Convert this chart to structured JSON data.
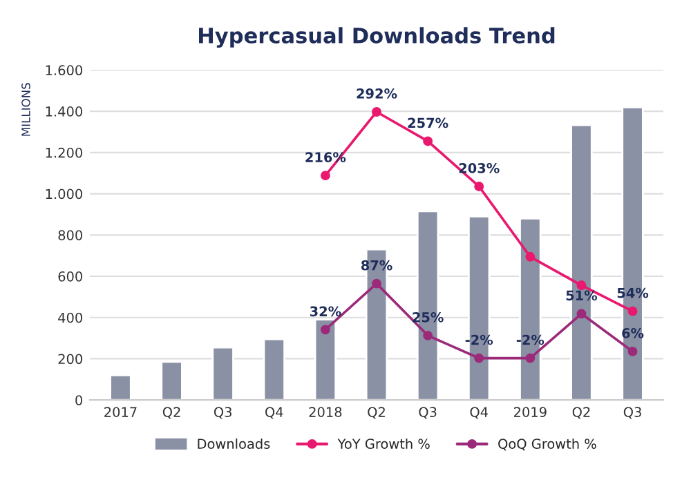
{
  "chart_data": {
    "type": "bar",
    "title": "Hypercasual Downloads Trend",
    "ylabel": "MILLIONS",
    "categories": [
      "2017",
      "Q2",
      "Q3",
      "Q4",
      "2018",
      "Q2",
      "Q3",
      "Q4",
      "2019",
      "Q2",
      "Q3"
    ],
    "series": [
      {
        "name": "Downloads",
        "color": "#8a91a5",
        "values": [
          120,
          185,
          255,
          295,
          390,
          730,
          915,
          890,
          880,
          1333,
          1419
        ]
      },
      {
        "name": "YoY Growth %",
        "type": "line",
        "axis": "y2",
        "color": "#e8196e",
        "values": [
          null,
          null,
          null,
          null,
          216,
          292,
          257,
          203,
          119,
          85,
          54
        ],
        "value_labels": [
          null,
          null,
          null,
          null,
          "216%",
          "292%",
          "257%",
          "203%",
          null,
          null,
          "54%"
        ]
      },
      {
        "name": "QoQ Growth %",
        "type": "line",
        "axis": "y2",
        "color": "#9c2a7a",
        "values": [
          null,
          null,
          null,
          null,
          32,
          87,
          25,
          -2,
          -2,
          51,
          6
        ],
        "value_labels": [
          null,
          null,
          null,
          null,
          "32%",
          "87%",
          "25%",
          "-2%",
          "-2%",
          "51%",
          "6%"
        ]
      }
    ],
    "ylim": [
      0,
      1600
    ],
    "yticks": [
      0,
      200,
      400,
      600,
      800,
      {
        "value": 1000,
        "label": "1.000"
      },
      {
        "value": 1200,
        "label": "1.200"
      },
      {
        "value": 1400,
        "label": "1.400"
      },
      {
        "value": 1600,
        "label": "1.600"
      }
    ],
    "tick_labels": "xy",
    "grid": "y",
    "legend": "bottom",
    "marker": "circle",
    "line_style": "solid"
  }
}
